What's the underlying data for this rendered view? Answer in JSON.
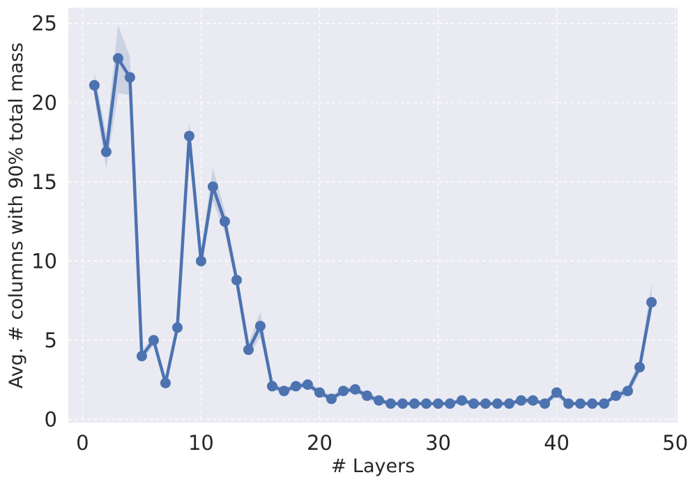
{
  "chart_data": {
    "type": "line",
    "title": "",
    "xlabel": "# Layers",
    "ylabel": "Avg. # columns with 90% total mass",
    "xlim": [
      -1.2,
      50.2
    ],
    "ylim": [
      -0.2,
      26.0
    ],
    "xticks": [
      "0",
      "10",
      "20",
      "30",
      "40",
      "50"
    ],
    "xtick_values": [
      0,
      10,
      20,
      30,
      40,
      50
    ],
    "yticks": [
      "0",
      "5",
      "10",
      "15",
      "20",
      "25"
    ],
    "ytick_values": [
      0,
      5,
      10,
      15,
      20,
      25
    ],
    "grid": true,
    "colors": {
      "background": "#eaeaf2",
      "grid": "#ffffff",
      "line": "#4c72b0",
      "band": "#4c72b0"
    },
    "series": [
      {
        "x": [
          1,
          2,
          3,
          4,
          5,
          6,
          7,
          8,
          9,
          10,
          11,
          12,
          13,
          14,
          15,
          16,
          17,
          18,
          19,
          20,
          21,
          22,
          23,
          24,
          25,
          26,
          27,
          28,
          29,
          30,
          31,
          32,
          33,
          34,
          35,
          36,
          37,
          38,
          39,
          40,
          41,
          42,
          43,
          44,
          45,
          46,
          47,
          48
        ],
        "values": [
          21.1,
          16.9,
          22.8,
          21.6,
          4.0,
          5.0,
          2.3,
          5.8,
          17.9,
          10.0,
          14.7,
          12.5,
          8.8,
          4.4,
          5.9,
          2.1,
          1.8,
          2.1,
          2.2,
          1.7,
          1.3,
          1.8,
          1.9,
          1.5,
          1.2,
          1.0,
          1.0,
          1.0,
          1.0,
          1.0,
          1.0,
          1.2,
          1.0,
          1.0,
          1.0,
          1.0,
          1.2,
          1.2,
          1.0,
          1.7,
          1.0,
          1.0,
          1.0,
          1.0,
          1.5,
          1.8,
          3.3,
          7.4
        ],
        "lower": [
          20.3,
          15.8,
          20.6,
          20.5,
          3.7,
          4.7,
          2.1,
          5.5,
          17.1,
          9.4,
          13.8,
          11.8,
          8.4,
          4.0,
          5.2,
          1.9,
          1.6,
          1.9,
          2.0,
          1.5,
          1.1,
          1.6,
          1.7,
          1.3,
          1.0,
          0.9,
          0.9,
          0.9,
          0.9,
          0.9,
          0.9,
          1.0,
          0.9,
          0.9,
          0.9,
          0.9,
          1.0,
          1.0,
          0.9,
          1.4,
          0.9,
          0.9,
          0.9,
          0.9,
          1.3,
          1.5,
          2.9,
          6.8
        ],
        "upper": [
          21.9,
          18.0,
          24.9,
          22.9,
          4.3,
          5.3,
          2.5,
          6.1,
          18.9,
          10.6,
          15.9,
          13.2,
          9.2,
          4.8,
          6.8,
          2.3,
          2.0,
          2.3,
          2.4,
          1.9,
          1.5,
          2.0,
          2.1,
          1.7,
          1.4,
          1.1,
          1.1,
          1.1,
          1.1,
          1.1,
          1.1,
          1.4,
          1.1,
          1.1,
          1.1,
          1.1,
          1.4,
          1.4,
          1.1,
          2.0,
          1.1,
          1.1,
          1.1,
          1.1,
          1.7,
          2.1,
          3.7,
          8.6
        ]
      }
    ]
  }
}
